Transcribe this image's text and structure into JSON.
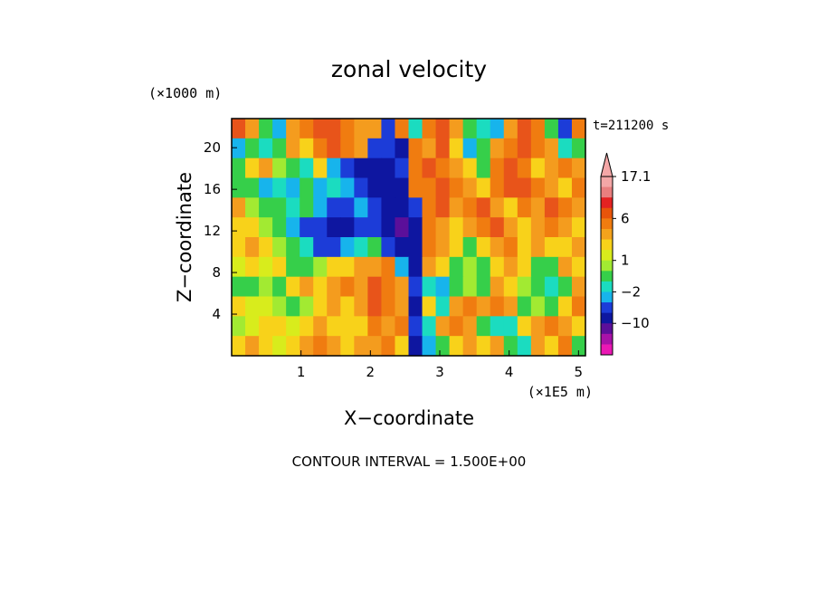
{
  "chart_data": {
    "type": "heatmap",
    "title": "zonal velocity",
    "xlabel": "X−coordinate",
    "ylabel": "Z−coordinate",
    "x_unit": "(×1E5 m)",
    "y_unit": "(×1000 m)",
    "time_label": "t=211200 s",
    "footer": "CONTOUR INTERVAL = 1.500E+00",
    "xlim": [
      0,
      5.1
    ],
    "ylim": [
      0,
      22.8
    ],
    "x_ticks": [
      "1",
      "2",
      "3",
      "4",
      "5"
    ],
    "y_ticks": [
      "4",
      "8",
      "12",
      "16",
      "20"
    ],
    "colorbar": {
      "labels": [
        "17.1",
        "6",
        "1",
        "−2",
        "−10"
      ],
      "levels": [
        "17.1",
        "15",
        "12",
        "9",
        "6",
        "4.5",
        "3",
        "2",
        "1",
        "0",
        "-1",
        "-2",
        "-4",
        "-7",
        "-10",
        "-13",
        "-16"
      ],
      "colors": [
        "#f4a7a7",
        "#e97f7f",
        "#e42222",
        "#e8540a",
        "#f07c10",
        "#f4a31c",
        "#f8d21a",
        "#d8ec1c",
        "#a2ea32",
        "#36cf4a",
        "#1bdcc0",
        "#17b4ec",
        "#1c3cd8",
        "#0e16a0",
        "#5b0f9a",
        "#a812a8",
        "#ea18b4"
      ]
    },
    "cells": [
      [
        "#e8541a",
        "#f49c1e",
        "#36cf4a",
        "#17b4ec",
        "#f49c1e",
        "#f07c10",
        "#e8541a",
        "#e8541a",
        "#f07c10",
        "#f49c1e",
        "#f49c1e",
        "#1c3cd8",
        "#f07c10",
        "#1bdcc0",
        "#f07c10",
        "#e8541a",
        "#f49c1e",
        "#36cf4a",
        "#1bdcc0",
        "#17b4ec",
        "#f49c1e",
        "#e8541a",
        "#f07c10",
        "#36cf4a",
        "#1c3cd8",
        "#f07c10"
      ],
      [
        "#17b4ec",
        "#36cf4a",
        "#1bdcc0",
        "#36cf4a",
        "#f49c1e",
        "#f8d21a",
        "#f07c10",
        "#e8541a",
        "#f07c10",
        "#f49c1e",
        "#1c3cd8",
        "#1c3cd8",
        "#0e16a0",
        "#f07c10",
        "#f49c1e",
        "#e8541a",
        "#f8d21a",
        "#17b4ec",
        "#36cf4a",
        "#f49c1e",
        "#f07c10",
        "#e8541a",
        "#f07c10",
        "#f49c1e",
        "#1bdcc0",
        "#36cf4a"
      ],
      [
        "#36cf4a",
        "#f8d21a",
        "#f49c1e",
        "#a2ea32",
        "#36cf4a",
        "#1bdcc0",
        "#f8d21a",
        "#17b4ec",
        "#1c3cd8",
        "#0e16a0",
        "#0e16a0",
        "#0e16a0",
        "#1c3cd8",
        "#f07c10",
        "#e8541a",
        "#f07c10",
        "#f49c1e",
        "#f8d21a",
        "#36cf4a",
        "#f07c10",
        "#e8541a",
        "#f07c10",
        "#f8d21a",
        "#f49c1e",
        "#f07c10",
        "#f49c1e"
      ],
      [
        "#36cf4a",
        "#36cf4a",
        "#17b4ec",
        "#1bdcc0",
        "#17b4ec",
        "#36cf4a",
        "#17b4ec",
        "#1bdcc0",
        "#17b4ec",
        "#1c3cd8",
        "#0e16a0",
        "#0e16a0",
        "#0e16a0",
        "#f07c10",
        "#f07c10",
        "#e8541a",
        "#f07c10",
        "#f49c1e",
        "#f8d21a",
        "#f07c10",
        "#e8541a",
        "#e8541a",
        "#f07c10",
        "#f49c1e",
        "#f8d21a",
        "#f07c10"
      ],
      [
        "#f49c1e",
        "#a2ea32",
        "#36cf4a",
        "#36cf4a",
        "#1bdcc0",
        "#36cf4a",
        "#17b4ec",
        "#1c3cd8",
        "#1c3cd8",
        "#17b4ec",
        "#1c3cd8",
        "#0e16a0",
        "#0e16a0",
        "#1c3cd8",
        "#f07c10",
        "#e8541a",
        "#f49c1e",
        "#f07c10",
        "#e8541a",
        "#f49c1e",
        "#f8d21a",
        "#f07c10",
        "#f49c1e",
        "#e8541a",
        "#f07c10",
        "#f49c1e"
      ],
      [
        "#f8d21a",
        "#f8d21a",
        "#a2ea32",
        "#36cf4a",
        "#17b4ec",
        "#1c3cd8",
        "#1c3cd8",
        "#0e16a0",
        "#0e16a0",
        "#1c3cd8",
        "#1c3cd8",
        "#0e16a0",
        "#5b0f9a",
        "#0e16a0",
        "#f07c10",
        "#f49c1e",
        "#f8d21a",
        "#f49c1e",
        "#f07c10",
        "#e8541a",
        "#f49c1e",
        "#f8d21a",
        "#f49c1e",
        "#f07c10",
        "#f49c1e",
        "#f8d21a"
      ],
      [
        "#f8d21a",
        "#f49c1e",
        "#f8d21a",
        "#a2ea32",
        "#36cf4a",
        "#1bdcc0",
        "#1c3cd8",
        "#1c3cd8",
        "#17b4ec",
        "#1bdcc0",
        "#36cf4a",
        "#1c3cd8",
        "#0e16a0",
        "#0e16a0",
        "#f07c10",
        "#f49c1e",
        "#f8d21a",
        "#36cf4a",
        "#f8d21a",
        "#f49c1e",
        "#f07c10",
        "#f8d21a",
        "#f49c1e",
        "#f8d21a",
        "#f8d21a",
        "#f49c1e"
      ],
      [
        "#d8ec1c",
        "#f8d21a",
        "#d8ec1c",
        "#f8d21a",
        "#36cf4a",
        "#36cf4a",
        "#a2ea32",
        "#f8d21a",
        "#f8d21a",
        "#f49c1e",
        "#f49c1e",
        "#f07c10",
        "#17b4ec",
        "#0e16a0",
        "#f49c1e",
        "#f8d21a",
        "#36cf4a",
        "#a2ea32",
        "#36cf4a",
        "#f8d21a",
        "#f49c1e",
        "#f8d21a",
        "#36cf4a",
        "#36cf4a",
        "#f49c1e",
        "#f8d21a"
      ],
      [
        "#36cf4a",
        "#36cf4a",
        "#a2ea32",
        "#36cf4a",
        "#f8d21a",
        "#f49c1e",
        "#f8d21a",
        "#f49c1e",
        "#f07c10",
        "#f49c1e",
        "#e8541a",
        "#f07c10",
        "#f49c1e",
        "#1c3cd8",
        "#1bdcc0",
        "#17b4ec",
        "#36cf4a",
        "#a2ea32",
        "#36cf4a",
        "#f49c1e",
        "#f8d21a",
        "#a2ea32",
        "#36cf4a",
        "#1bdcc0",
        "#36cf4a",
        "#f49c1e"
      ],
      [
        "#f8d21a",
        "#d8ec1c",
        "#d8ec1c",
        "#a2ea32",
        "#36cf4a",
        "#a2ea32",
        "#f8d21a",
        "#f49c1e",
        "#f8d21a",
        "#f49c1e",
        "#e8541a",
        "#f07c10",
        "#f49c1e",
        "#0e16a0",
        "#f8d21a",
        "#1bdcc0",
        "#f49c1e",
        "#f07c10",
        "#f49c1e",
        "#f07c10",
        "#f49c1e",
        "#36cf4a",
        "#a2ea32",
        "#36cf4a",
        "#f8d21a",
        "#f07c10"
      ],
      [
        "#a2ea32",
        "#d8ec1c",
        "#f8d21a",
        "#f8d21a",
        "#d8ec1c",
        "#f8d21a",
        "#f49c1e",
        "#f8d21a",
        "#f8d21a",
        "#f8d21a",
        "#f07c10",
        "#f49c1e",
        "#f07c10",
        "#1c3cd8",
        "#1bdcc0",
        "#f49c1e",
        "#f07c10",
        "#f49c1e",
        "#36cf4a",
        "#1bdcc0",
        "#1bdcc0",
        "#f8d21a",
        "#f49c1e",
        "#f07c10",
        "#f49c1e",
        "#f8d21a"
      ],
      [
        "#f8d21a",
        "#f49c1e",
        "#f8d21a",
        "#d8ec1c",
        "#f8d21a",
        "#f49c1e",
        "#f07c10",
        "#f49c1e",
        "#f8d21a",
        "#f49c1e",
        "#f49c1e",
        "#f07c10",
        "#f8d21a",
        "#0e16a0",
        "#17b4ec",
        "#36cf4a",
        "#f8d21a",
        "#f49c1e",
        "#f8d21a",
        "#f49c1e",
        "#36cf4a",
        "#1bdcc0",
        "#f49c1e",
        "#f8d21a",
        "#f07c10",
        "#36cf4a"
      ]
    ]
  }
}
